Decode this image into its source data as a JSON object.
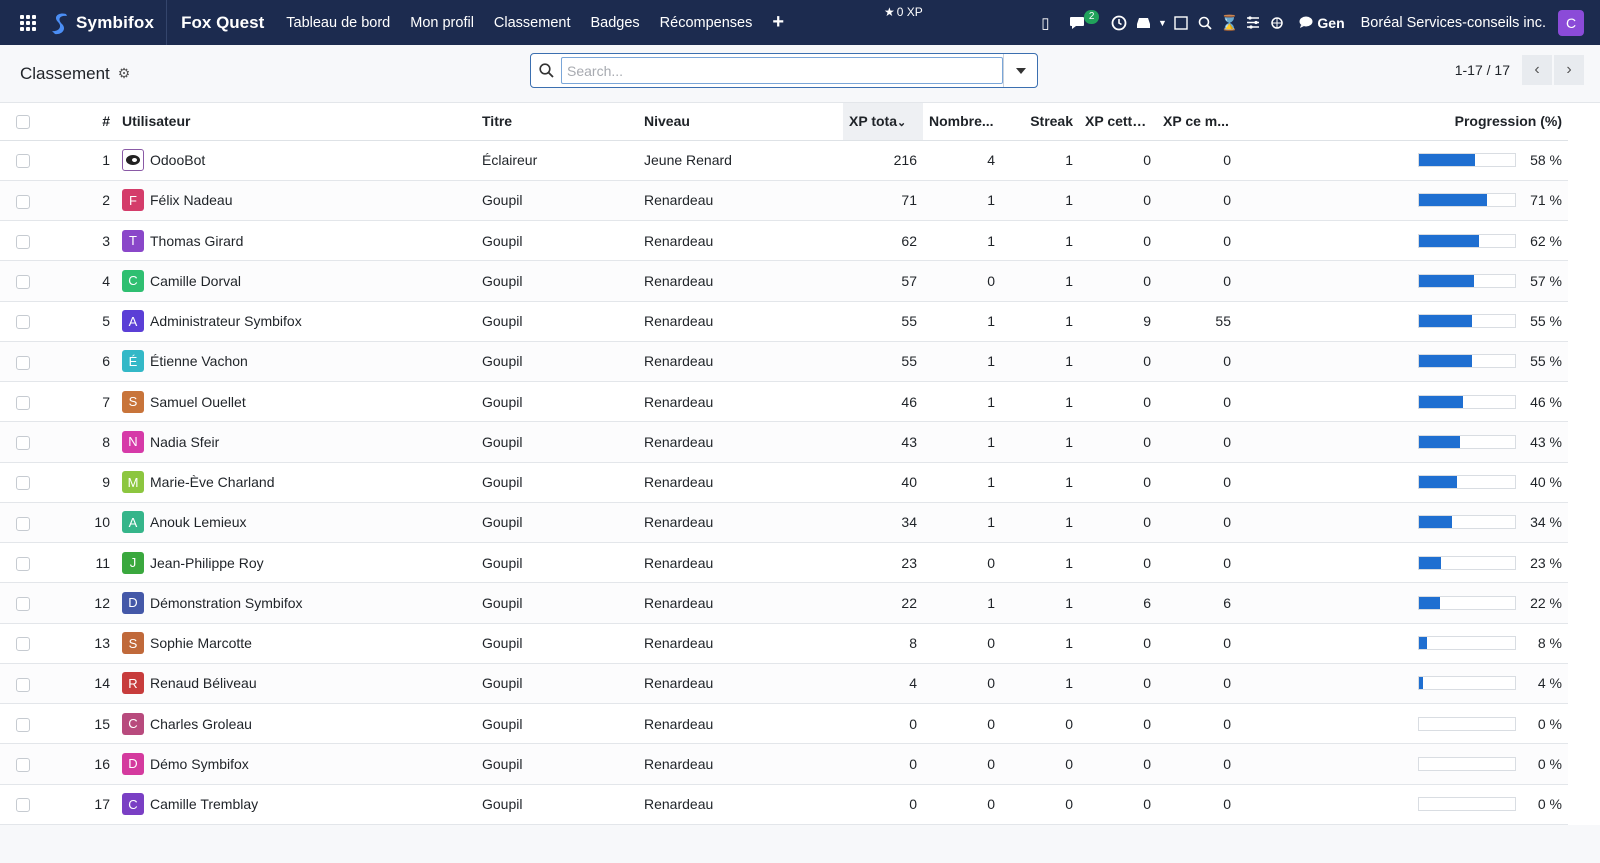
{
  "navbar": {
    "brand": "Symbifox",
    "app_name": "Fox Quest",
    "menu": [
      "Tableau de bord",
      "Mon profil",
      "Classement",
      "Badges",
      "Récompenses"
    ],
    "xp": "0 XP",
    "chat_count": "2",
    "gen_label": "Gen",
    "company": "Boréal Services-conseils inc.",
    "user_initial": "C"
  },
  "control": {
    "title": "Classement",
    "search_placeholder": "Search...",
    "pager_value": "1-17 / 17"
  },
  "table": {
    "headers": {
      "rank": "#",
      "user": "Utilisateur",
      "title": "Titre",
      "level": "Niveau",
      "xp_total": "XP tota",
      "count": "Nombre...",
      "streak": "Streak",
      "xp_week": "XP cette...",
      "xp_month": "XP ce m...",
      "progress": "Progression (%)"
    },
    "rows": [
      {
        "rank": "1",
        "initial": "",
        "avatar_color": "bot",
        "name": "OdooBot",
        "title": "Éclaireur",
        "level": "Jeune Renard",
        "xp_total": "216",
        "count": "4",
        "streak": "1",
        "xp_week": "0",
        "xp_month": "0",
        "progress": 58,
        "progress_label": "58 %"
      },
      {
        "rank": "2",
        "initial": "F",
        "avatar_color": "#d43c6a",
        "name": "Félix Nadeau",
        "title": "Goupil",
        "level": "Renardeau",
        "xp_total": "71",
        "count": "1",
        "streak": "1",
        "xp_week": "0",
        "xp_month": "0",
        "progress": 71,
        "progress_label": "71 %"
      },
      {
        "rank": "3",
        "initial": "T",
        "avatar_color": "#8a47c9",
        "name": "Thomas Girard",
        "title": "Goupil",
        "level": "Renardeau",
        "xp_total": "62",
        "count": "1",
        "streak": "1",
        "xp_week": "0",
        "xp_month": "0",
        "progress": 62,
        "progress_label": "62 %"
      },
      {
        "rank": "4",
        "initial": "C",
        "avatar_color": "#2fbf71",
        "name": "Camille Dorval",
        "title": "Goupil",
        "level": "Renardeau",
        "xp_total": "57",
        "count": "0",
        "streak": "1",
        "xp_week": "0",
        "xp_month": "0",
        "progress": 57,
        "progress_label": "57 %"
      },
      {
        "rank": "5",
        "initial": "A",
        "avatar_color": "#5b3fd6",
        "name": "Administrateur Symbifox",
        "title": "Goupil",
        "level": "Renardeau",
        "xp_total": "55",
        "count": "1",
        "streak": "1",
        "xp_week": "9",
        "xp_month": "55",
        "progress": 55,
        "progress_label": "55 %"
      },
      {
        "rank": "6",
        "initial": "É",
        "avatar_color": "#33b8c7",
        "name": "Étienne Vachon",
        "title": "Goupil",
        "level": "Renardeau",
        "xp_total": "55",
        "count": "1",
        "streak": "1",
        "xp_week": "0",
        "xp_month": "0",
        "progress": 55,
        "progress_label": "55 %"
      },
      {
        "rank": "7",
        "initial": "S",
        "avatar_color": "#c8743a",
        "name": "Samuel Ouellet",
        "title": "Goupil",
        "level": "Renardeau",
        "xp_total": "46",
        "count": "1",
        "streak": "1",
        "xp_week": "0",
        "xp_month": "0",
        "progress": 46,
        "progress_label": "46 %"
      },
      {
        "rank": "8",
        "initial": "N",
        "avatar_color": "#d63aa8",
        "name": "Nadia Sfeir",
        "title": "Goupil",
        "level": "Renardeau",
        "xp_total": "43",
        "count": "1",
        "streak": "1",
        "xp_week": "0",
        "xp_month": "0",
        "progress": 43,
        "progress_label": "43 %"
      },
      {
        "rank": "9",
        "initial": "M",
        "avatar_color": "#8cc63f",
        "name": "Marie-Ève Charland",
        "title": "Goupil",
        "level": "Renardeau",
        "xp_total": "40",
        "count": "1",
        "streak": "1",
        "xp_week": "0",
        "xp_month": "0",
        "progress": 40,
        "progress_label": "40 %"
      },
      {
        "rank": "10",
        "initial": "A",
        "avatar_color": "#35b58a",
        "name": "Anouk Lemieux",
        "title": "Goupil",
        "level": "Renardeau",
        "xp_total": "34",
        "count": "1",
        "streak": "1",
        "xp_week": "0",
        "xp_month": "0",
        "progress": 34,
        "progress_label": "34 %"
      },
      {
        "rank": "11",
        "initial": "J",
        "avatar_color": "#3aa83e",
        "name": "Jean-Philippe Roy",
        "title": "Goupil",
        "level": "Renardeau",
        "xp_total": "23",
        "count": "0",
        "streak": "1",
        "xp_week": "0",
        "xp_month": "0",
        "progress": 23,
        "progress_label": "23 %"
      },
      {
        "rank": "12",
        "initial": "D",
        "avatar_color": "#4458a8",
        "name": "Démonstration Symbifox",
        "title": "Goupil",
        "level": "Renardeau",
        "xp_total": "22",
        "count": "1",
        "streak": "1",
        "xp_week": "6",
        "xp_month": "6",
        "progress": 22,
        "progress_label": "22 %"
      },
      {
        "rank": "13",
        "initial": "S",
        "avatar_color": "#c0693a",
        "name": "Sophie Marcotte",
        "title": "Goupil",
        "level": "Renardeau",
        "xp_total": "8",
        "count": "0",
        "streak": "1",
        "xp_week": "0",
        "xp_month": "0",
        "progress": 8,
        "progress_label": "8 %"
      },
      {
        "rank": "14",
        "initial": "R",
        "avatar_color": "#c73c3c",
        "name": "Renaud Béliveau",
        "title": "Goupil",
        "level": "Renardeau",
        "xp_total": "4",
        "count": "0",
        "streak": "1",
        "xp_week": "0",
        "xp_month": "0",
        "progress": 4,
        "progress_label": "4 %"
      },
      {
        "rank": "15",
        "initial": "C",
        "avatar_color": "#b84a7d",
        "name": "Charles Groleau",
        "title": "Goupil",
        "level": "Renardeau",
        "xp_total": "0",
        "count": "0",
        "streak": "0",
        "xp_week": "0",
        "xp_month": "0",
        "progress": 0,
        "progress_label": "0 %"
      },
      {
        "rank": "16",
        "initial": "D",
        "avatar_color": "#d43a9e",
        "name": "Démo Symbifox",
        "title": "Goupil",
        "level": "Renardeau",
        "xp_total": "0",
        "count": "0",
        "streak": "0",
        "xp_week": "0",
        "xp_month": "0",
        "progress": 0,
        "progress_label": "0 %"
      },
      {
        "rank": "17",
        "initial": "C",
        "avatar_color": "#7a3fc4",
        "name": "Camille Tremblay",
        "title": "Goupil",
        "level": "Renardeau",
        "xp_total": "0",
        "count": "0",
        "streak": "0",
        "xp_week": "0",
        "xp_month": "0",
        "progress": 0,
        "progress_label": "0 %"
      }
    ]
  },
  "colors": {
    "navbar": "#1c2b4f",
    "progress_fill": "#1f6fd1",
    "accent": "#3b6fb0"
  }
}
